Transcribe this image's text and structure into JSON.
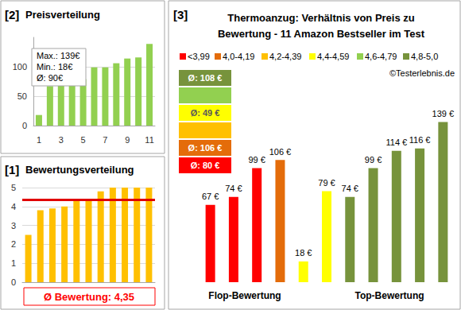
{
  "chart_data": [
    {
      "type": "bar",
      "panel": "[2]",
      "title": "Preisverteilung",
      "categories": [
        "1",
        null,
        "3",
        null,
        "5",
        null,
        "7",
        null,
        "9",
        null,
        "11"
      ],
      "values": [
        18,
        67,
        74,
        74,
        79,
        99,
        99,
        106,
        114,
        116,
        139
      ],
      "color": "#92d050",
      "ylim": [
        0,
        150
      ],
      "yticks": [
        0,
        50,
        100
      ],
      "grid": true,
      "stats": [
        "Max.: 139€",
        "Min.: 18€",
        "Ø: 90€"
      ]
    },
    {
      "type": "bar",
      "panel": "[1]",
      "title": "Bewertungsverteilung",
      "categories": [
        null,
        null,
        null,
        null,
        null,
        null,
        null,
        null,
        null,
        null,
        null
      ],
      "values": [
        2.5,
        3.8,
        3.9,
        4.0,
        4.3,
        4.4,
        4.8,
        5.0,
        5.0,
        5.0,
        5.0
      ],
      "color": "#ffc000",
      "ylim": [
        0,
        5
      ],
      "yticks": [
        0,
        1,
        2,
        3,
        4,
        5
      ],
      "grid": true,
      "tick_labels": "y",
      "average": 4.35,
      "average_label": "Ø Bewertung: 4,35"
    },
    {
      "type": "bar",
      "panel": "[3]",
      "title": "Thermoanzug: Verhältnis von Preis zu\nBewertung - 11 Amazon Bestseller im Test",
      "categories": [
        null,
        null,
        null,
        null,
        null,
        null,
        null,
        null,
        null,
        null,
        null
      ],
      "values": [
        67,
        74,
        99,
        106,
        18,
        79,
        74,
        99,
        114,
        116,
        139
      ],
      "colors": [
        "#ff0000",
        "#ff0000",
        "#ff0000",
        "#e46c0a",
        "#ffff00",
        "#ffff00",
        "#77933c",
        "#77933c",
        "#77933c",
        "#77933c",
        "#77933c"
      ],
      "data_labels": true,
      "value_labels": [
        "67 €",
        "74 €",
        "99 €",
        "106 €",
        "18 €",
        "79 €",
        "74 €",
        "99 €",
        "114 €",
        "116 €",
        "139 €"
      ],
      "ylim": [
        0,
        160
      ],
      "tick_labels": false,
      "grid": false,
      "rating_classes": [
        {
          "name": "<3,99",
          "color": "#ff0000",
          "average_label": "Ø: 80 €"
        },
        {
          "name": "4,0-4,19",
          "color": "#e46c0a",
          "average_label": "Ø: 106 €"
        },
        {
          "name": "4,2-4,39",
          "color": "#ffc000",
          "average_label": null
        },
        {
          "name": "4,4-4,59",
          "color": "#ffff00",
          "average_label": "Ø: 49 €"
        },
        {
          "name": "4,6-4,79",
          "color": "#92d050",
          "average_label": null
        },
        {
          "name": "4,8-5,0",
          "color": "#77933c",
          "average_label": "Ø: 108 €"
        }
      ],
      "copyright": "©Testerlebnis.de",
      "group_labels": [
        "Flop-Bewertung",
        "Top-Bewertung"
      ]
    }
  ]
}
